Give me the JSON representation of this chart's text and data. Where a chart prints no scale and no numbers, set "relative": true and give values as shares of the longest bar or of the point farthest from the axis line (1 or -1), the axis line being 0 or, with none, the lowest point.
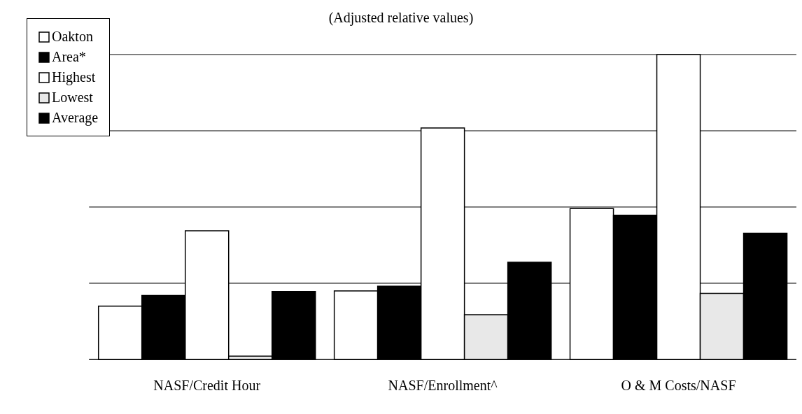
{
  "chart_data": {
    "type": "bar",
    "title": "(Adjusted relative values)",
    "relative": true,
    "grid": "y",
    "legend": "top left",
    "categories": [
      "NASF/Credit Hour",
      "NASF/Enrollment^",
      "O & M Costs/NASF"
    ],
    "series": [
      {
        "name": "Oakton",
        "color": "#ffffff",
        "values": [
          0.175,
          0.225,
          0.495
        ]
      },
      {
        "name": "Area*",
        "color": "#000000",
        "values": [
          0.21,
          0.24,
          0.473
        ]
      },
      {
        "name": "Highest",
        "color": "#ffffff",
        "values": [
          0.422,
          0.759,
          1
        ]
      },
      {
        "name": "Lowest",
        "color": "#e8e8e8",
        "values": [
          0.011,
          0.147,
          0.217
        ]
      },
      {
        "name": "Average",
        "color": "#000000",
        "values": [
          0.223,
          0.319,
          0.414
        ]
      }
    ]
  }
}
